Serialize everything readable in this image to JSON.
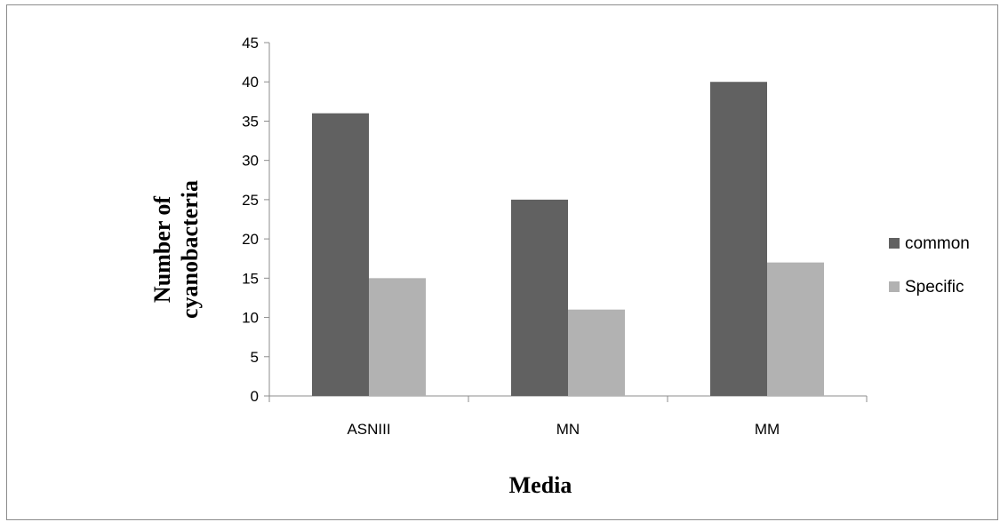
{
  "chart_data": {
    "type": "bar",
    "title": "",
    "xlabel": "Media",
    "ylabel_lines": [
      "Number of",
      "cyanobacteria"
    ],
    "categories": [
      "ASNIII",
      "MN",
      "MM"
    ],
    "series": [
      {
        "name": "common",
        "values": [
          36,
          25,
          40
        ],
        "color": "#616161"
      },
      {
        "name": "Specific",
        "values": [
          15,
          11,
          17
        ],
        "color": "#b2b2b2"
      }
    ],
    "ylim": [
      0,
      45
    ],
    "yticks": [
      0,
      5,
      10,
      15,
      20,
      25,
      30,
      35,
      40,
      45
    ],
    "grid": false,
    "legend": "right"
  }
}
